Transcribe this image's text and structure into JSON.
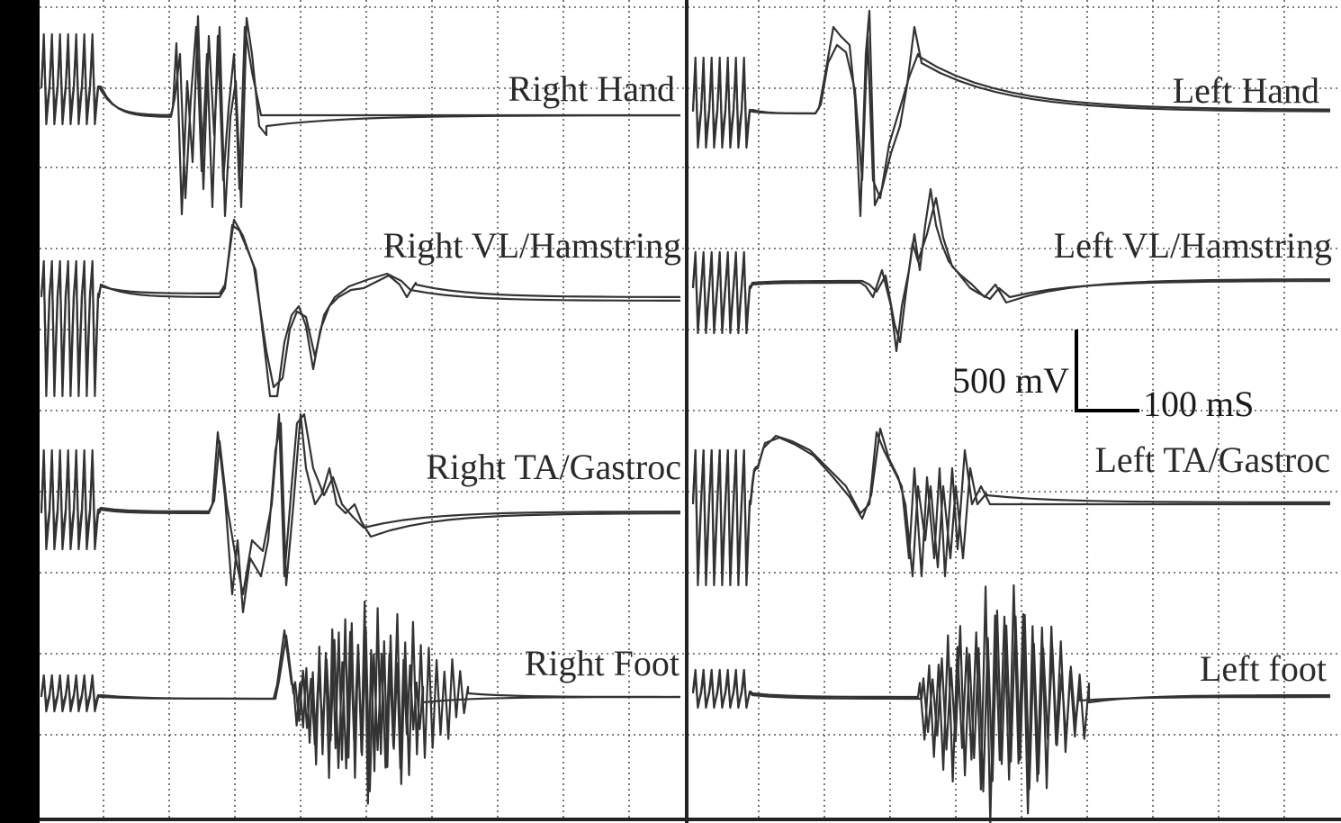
{
  "chart_data": {
    "type": "line",
    "title": "",
    "grid": true,
    "panels": [
      {
        "name": "right",
        "traces": [
          {
            "label": "Right Hand"
          },
          {
            "label": "Right VL/Hamstring"
          },
          {
            "label": "Right TA/Gastroc"
          },
          {
            "label": "Right Foot"
          }
        ]
      },
      {
        "name": "left",
        "traces": [
          {
            "label": "Left Hand"
          },
          {
            "label": "Left VL/Hamstring"
          },
          {
            "label": "Left TA/Gastroc"
          },
          {
            "label": "Left foot"
          }
        ]
      }
    ],
    "scale_bar": {
      "voltage_label": "500 mV",
      "time_label": "100 mS",
      "voltage_mV": 500,
      "time_ms": 100
    },
    "colors": {
      "trace": "#333333",
      "grid": "#555555",
      "background": "#ffffff",
      "border": "#000000"
    }
  }
}
